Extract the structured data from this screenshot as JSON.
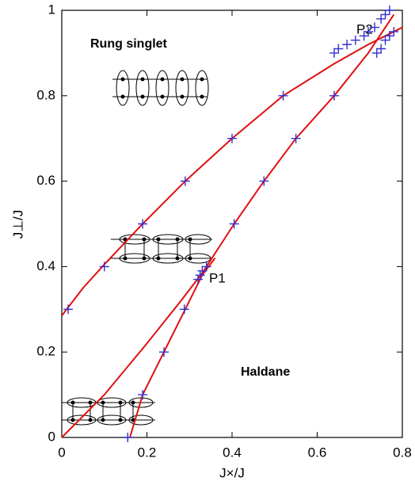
{
  "chart_data": {
    "type": "scatter",
    "xlabel": "J×/J",
    "ylabel": "J⊥/J",
    "xlim": [
      0,
      0.8
    ],
    "ylim": [
      0,
      1
    ],
    "xticks": [
      0,
      0.2,
      0.4,
      0.6,
      0.8
    ],
    "yticks": [
      0,
      0.2,
      0.4,
      0.6,
      0.8,
      1
    ],
    "annotations": [
      "Rung singlet",
      "Haldane",
      "P1",
      "P2"
    ],
    "series": [
      {
        "type": "line",
        "color": "#e01010",
        "x": [
          0,
          0.05,
          0.1,
          0.19,
          0.29,
          0.4,
          0.52,
          0.64,
          0.72,
          0.8
        ],
        "values": [
          0.285,
          0.35,
          0.405,
          0.5,
          0.6,
          0.7,
          0.8,
          0.875,
          0.92,
          0.96
        ]
      },
      {
        "type": "line",
        "color": "#e01010",
        "x": [
          0,
          0.1,
          0.2,
          0.28,
          0.33,
          0.405,
          0.475,
          0.55,
          0.64,
          0.72,
          0.78
        ],
        "values": [
          0,
          0.1,
          0.22,
          0.32,
          0.385,
          0.5,
          0.6,
          0.7,
          0.8,
          0.9,
          0.99
        ]
      },
      {
        "type": "line",
        "color": "#e01010",
        "x": [
          0.16,
          0.19,
          0.24,
          0.29,
          0.33,
          0.36
        ],
        "values": [
          0,
          0.1,
          0.2,
          0.3,
          0.38,
          0.42
        ]
      },
      {
        "type": "scatter",
        "color": "#3030d0",
        "x": [
          0.015,
          0.1,
          0.19,
          0.29,
          0.4,
          0.52,
          0.64,
          0.65,
          0.67,
          0.69,
          0.71,
          0.72,
          0.735,
          0.75,
          0.76,
          0.77,
          0.74,
          0.75,
          0.76,
          0.77,
          0.78,
          0.155,
          0.19,
          0.24,
          0.288,
          0.32,
          0.325,
          0.33,
          0.34,
          0.405,
          0.475,
          0.55,
          0.64
        ],
        "values": [
          0.3,
          0.4,
          0.5,
          0.6,
          0.7,
          0.8,
          0.9,
          0.91,
          0.92,
          0.93,
          0.94,
          0.95,
          0.96,
          0.98,
          0.99,
          1.0,
          0.9,
          0.91,
          0.93,
          0.94,
          0.95,
          0,
          0.1,
          0.2,
          0.3,
          0.37,
          0.38,
          0.39,
          0.4,
          0.5,
          0.6,
          0.7,
          0.8
        ]
      }
    ]
  }
}
